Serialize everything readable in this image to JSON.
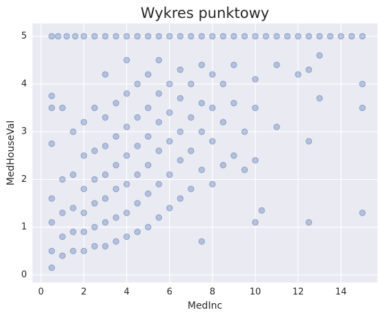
{
  "chart_data": {
    "type": "scatter",
    "title": "Wykres punktowy",
    "x_label": "MedInc",
    "y_label": "MedHouseVal",
    "color": "#4c72b0",
    "grid": true,
    "xlim": [
      -0.4,
      15.7
    ],
    "ylim": [
      -0.16,
      5.27
    ],
    "xticks": [
      0,
      2,
      4,
      6,
      8,
      10,
      12,
      14
    ],
    "yticks": [
      0,
      1,
      2,
      3,
      4,
      5
    ],
    "x": [
      0.5,
      0.8,
      1.2,
      1.6,
      2,
      2.5,
      3,
      3.5,
      4,
      4.5,
      5,
      5.5,
      6,
      6.5,
      7,
      7.5,
      8,
      8.5,
      9,
      9.5,
      10,
      10.5,
      11,
      11.5,
      12,
      12.5,
      13,
      13.5,
      14,
      14.5,
      15,
      0.5,
      0.5,
      0.5,
      0.5,
      0.5,
      0.5,
      0.5,
      1,
      1,
      1,
      1,
      1,
      1.5,
      1.5,
      1.5,
      1.5,
      1.5,
      2,
      2,
      2,
      2,
      2,
      2,
      2.5,
      2.5,
      2.5,
      2.5,
      2.5,
      2.5,
      3,
      3,
      3,
      3,
      3,
      3,
      3,
      3.5,
      3.5,
      3.5,
      3.5,
      3.5,
      3.5,
      4,
      4,
      4,
      4,
      4,
      4,
      4,
      4.5,
      4.5,
      4.5,
      4.5,
      4.5,
      4.5,
      5,
      5,
      5,
      5,
      5,
      5,
      5.5,
      5.5,
      5.5,
      5.5,
      5.5,
      5.5,
      6,
      6,
      6,
      6,
      6,
      6.5,
      6.5,
      6.5,
      6.5,
      6.5,
      7,
      7,
      7,
      7,
      7.5,
      7.5,
      7.5,
      7.5,
      7.5,
      8,
      8,
      8,
      8,
      8.5,
      8.5,
      8.5,
      9,
      9,
      9,
      9.5,
      9.5,
      10,
      10,
      10,
      10,
      10.3,
      11,
      11,
      12,
      12.5,
      12.5,
      12.5,
      13,
      13,
      15,
      15,
      15
    ],
    "y": [
      5,
      5,
      5,
      5,
      5,
      5,
      5,
      5,
      5,
      5,
      5,
      5,
      5,
      5,
      5,
      5,
      5,
      5,
      5,
      5,
      5,
      5,
      5,
      5,
      5,
      5,
      5,
      5,
      5,
      5,
      5,
      0.15,
      0.5,
      1.1,
      1.6,
      2.75,
      3.5,
      3.75,
      0.4,
      0.8,
      1.3,
      2.0,
      3.5,
      0.5,
      0.9,
      1.4,
      2.1,
      3.0,
      0.5,
      0.9,
      1.3,
      1.8,
      2.5,
      3.2,
      0.6,
      1.0,
      1.5,
      2.0,
      2.6,
      3.5,
      0.6,
      1.1,
      1.6,
      2.1,
      2.7,
      3.3,
      4.2,
      0.7,
      1.2,
      1.8,
      2.3,
      2.9,
      3.6,
      0.8,
      1.3,
      1.9,
      2.5,
      3.1,
      3.8,
      4.5,
      0.9,
      1.5,
      2.1,
      2.7,
      3.3,
      4.0,
      1.0,
      1.7,
      2.3,
      2.9,
      3.5,
      4.2,
      1.2,
      1.9,
      2.6,
      3.2,
      3.8,
      4.5,
      1.4,
      2.1,
      2.8,
      3.4,
      4.0,
      1.6,
      2.4,
      3.0,
      3.7,
      4.3,
      1.8,
      2.6,
      3.3,
      4.0,
      0.7,
      2.2,
      3.0,
      3.6,
      4.4,
      1.9,
      2.8,
      3.5,
      4.2,
      2.3,
      3.2,
      4.0,
      2.5,
      3.6,
      4.4,
      2.2,
      3.0,
      1.1,
      2.4,
      3.5,
      4.1,
      1.35,
      3.1,
      4.4,
      4.2,
      1.1,
      2.8,
      4.3,
      3.7,
      4.6,
      1.3,
      3.5,
      4.0
    ]
  }
}
